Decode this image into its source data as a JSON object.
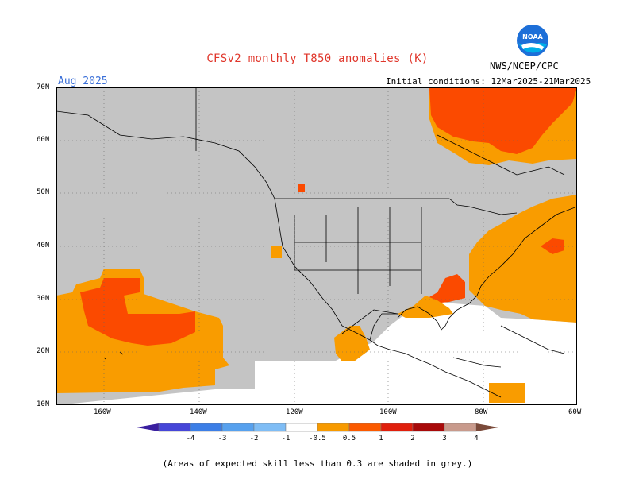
{
  "title": "CFSv2 monthly T850 anomalies (K)",
  "month": "Aug 2025",
  "initial_conditions": "Initial conditions: 12Mar2025-21Mar2025",
  "agency": "NWS/NCEP/CPC",
  "logo_text": "NOAA",
  "lat_labels": [
    "70N",
    "60N",
    "50N",
    "40N",
    "30N",
    "20N",
    "10N"
  ],
  "lon_labels": [
    "160W",
    "140W",
    "120W",
    "100W",
    "80W",
    "60W"
  ],
  "colorbar": {
    "labels": [
      "-4",
      "-3",
      "-2",
      "-1",
      "-0.5",
      "0.5",
      "1",
      "2",
      "3",
      "4"
    ],
    "colors": [
      "#3a1fa0",
      "#4646d8",
      "#3c7ee6",
      "#57a1ee",
      "#7fbdf5",
      "#ffffff",
      "#f79a00",
      "#fb5a00",
      "#e01f0c",
      "#a80a0a",
      "#c89a8c",
      "#7a4a3a"
    ]
  },
  "note": "(Areas of expected skill less than 0.3 are shaded in grey.)",
  "colors": {
    "grey": "#c4c4c4",
    "orange": "#f99c00",
    "red_orange": "#fb4a00",
    "title_red": "#e0362b",
    "month_blue": "#3a6fd8"
  }
}
